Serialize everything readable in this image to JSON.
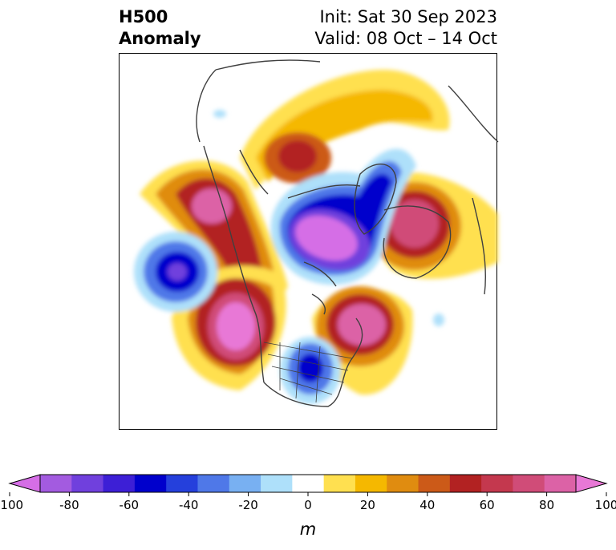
{
  "title": {
    "line1": "H500",
    "line2": "Anomaly"
  },
  "run": {
    "init": "Init: Sat 30 Sep 2023",
    "valid": "Valid: 08 Oct – 14 Oct"
  },
  "colorbar": {
    "unit": "m",
    "min": -100,
    "max": 100,
    "levels": [
      -100,
      -90,
      -80,
      -70,
      -60,
      -50,
      -40,
      -30,
      -20,
      -10,
      10,
      20,
      30,
      40,
      50,
      60,
      70,
      80,
      90,
      100
    ],
    "colors": [
      "#d56ee6",
      "#a35be0",
      "#7040dd",
      "#3d1fd6",
      "#0000cc",
      "#2540dc",
      "#4f78e8",
      "#78b0f2",
      "#aee0fa",
      "#ffffff",
      "#ffe050",
      "#f5b800",
      "#e08c10",
      "#cc5a18",
      "#b22222",
      "#c4384e",
      "#d04c78",
      "#dc62a6",
      "#e878d6"
    ],
    "tick_labels": [
      "-100",
      "-80",
      "-60",
      "-40",
      "-20",
      "0",
      "20",
      "40",
      "60",
      "80",
      "100"
    ]
  }
}
